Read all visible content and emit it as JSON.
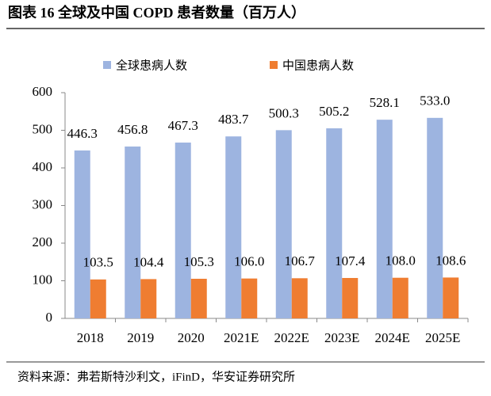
{
  "chart_data": {
    "type": "bar",
    "title": "图表 16 全球及中国 COPD 患者数量（百万人）",
    "source": "资料来源：弗若斯特沙利文，iFinD，华安证券研究所",
    "categories": [
      "2018",
      "2019",
      "2020",
      "2021E",
      "2022E",
      "2023E",
      "2024E",
      "2025E"
    ],
    "series": [
      {
        "name": "全球患病人数",
        "color": "#9db4e0",
        "values": [
          446.3,
          456.8,
          467.3,
          483.7,
          500.3,
          505.2,
          528.1,
          533.0
        ],
        "value_labels": [
          "446.3",
          "456.8",
          "467.3",
          "483.7",
          "500.3",
          "505.2",
          "528.1",
          "533.0"
        ]
      },
      {
        "name": "中国患病人数",
        "color": "#ef7d31",
        "values": [
          103.5,
          104.4,
          105.3,
          106.0,
          106.7,
          107.4,
          108.0,
          108.6
        ],
        "value_labels": [
          "103.5",
          "104.4",
          "105.3",
          "106.0",
          "106.7",
          "107.4",
          "108.0",
          "108.6"
        ]
      }
    ],
    "ylim": [
      0,
      600
    ],
    "yticks": [
      0,
      100,
      200,
      300,
      400,
      500,
      600
    ],
    "grid": false
  }
}
